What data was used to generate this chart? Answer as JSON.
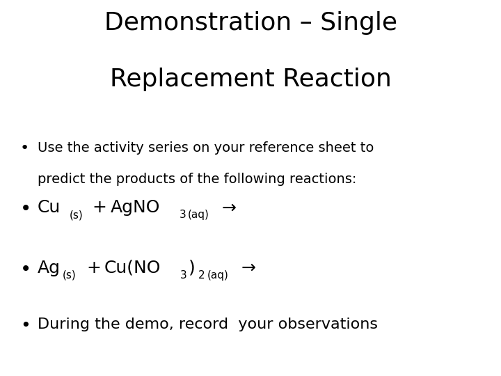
{
  "title_line1": "Demonstration – Single",
  "title_line2": "Replacement Reaction",
  "title_fontsize": 26,
  "title_fontweight": "normal",
  "title_color": "#000000",
  "background_color": "#ffffff",
  "bullet_color": "#000000",
  "bullet1_line1": "Use the activity series on your reference sheet to",
  "bullet1_line2": "predict the products of the following reactions:",
  "bullet1_fontsize": 14,
  "bullet2_fontsize": 18,
  "bullet3_fontsize": 18,
  "bullet4": "During the demo, record  your observations",
  "bullet4_fontsize": 16,
  "sub_fontsize": 11
}
